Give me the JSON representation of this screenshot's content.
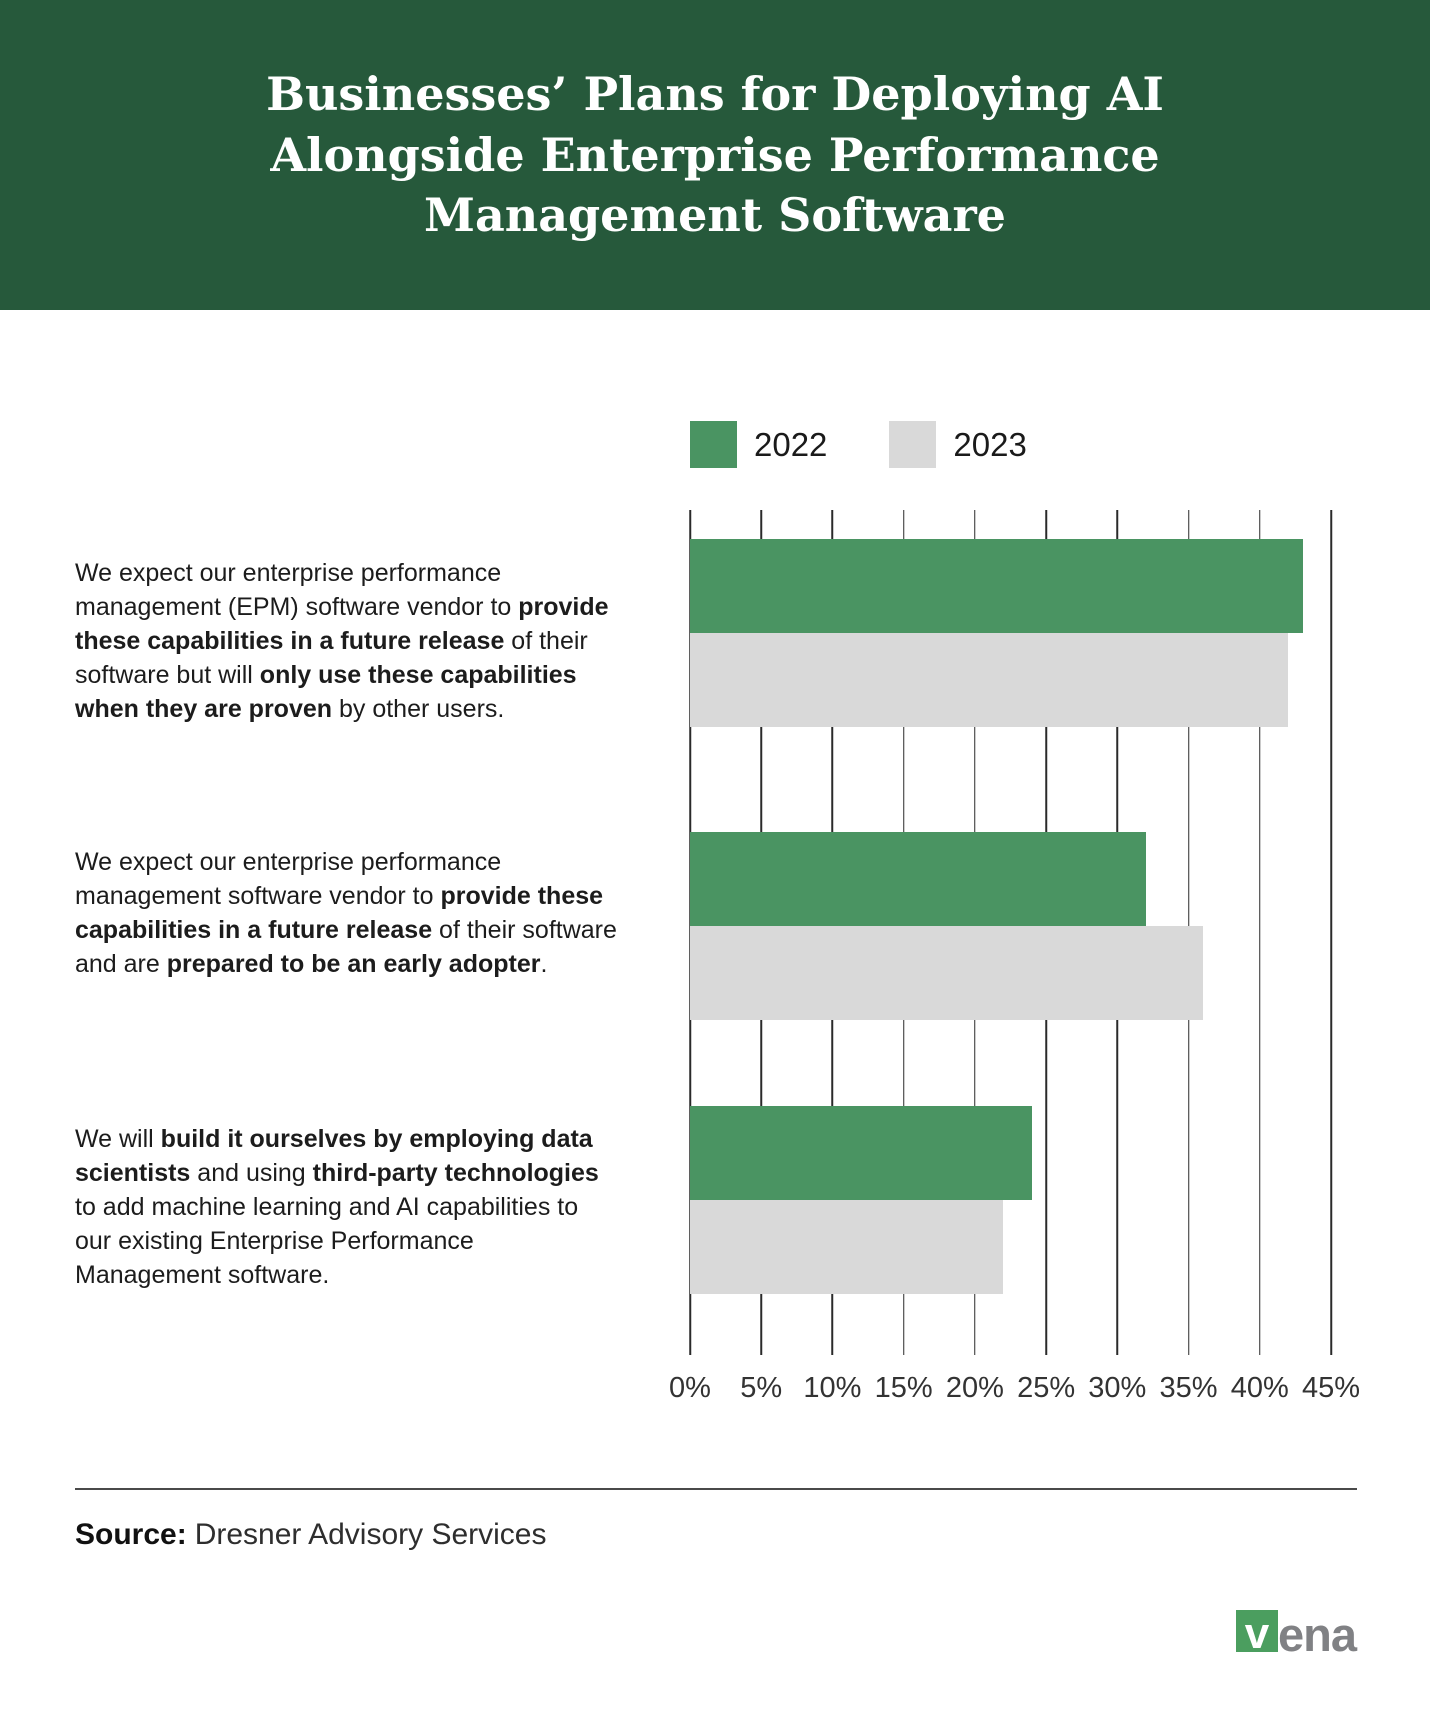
{
  "header": {
    "title": "Businesses’ Plans for Deploying AI Alongside Enterprise Performance Management Software"
  },
  "chart_data": {
    "type": "bar",
    "orientation": "horizontal",
    "title": "Businesses’ Plans for Deploying AI Alongside Enterprise Performance Management Software",
    "grid": true,
    "legend_position": "top",
    "axis": {
      "min": 0,
      "max": 45,
      "step": 5,
      "unit": "%",
      "tick_labels": [
        "0%",
        "5%",
        "10%",
        "15%",
        "20%",
        "25%",
        "30%",
        "35%",
        "40%",
        "45%"
      ]
    },
    "series": [
      {
        "name": "2022",
        "color": "#4A9462",
        "values": [
          43,
          32,
          24
        ]
      },
      {
        "name": "2023",
        "color": "#D9D9D9",
        "values": [
          42,
          36,
          22
        ]
      }
    ],
    "categories": [
      "We expect our enterprise performance management (EPM) software vendor to provide these capabilities in a future release of their software but will only use these capabilities when they are proven by other users.",
      "We expect our enterprise performance management software vendor to provide these capabilities in a future release of their software and are prepared to be an early adopter.",
      "We will build it ourselves by employing data scientists and using third-party technologies to add machine learning and AI capabilities to our existing Enterprise Performance Management software."
    ],
    "category_segments": [
      [
        {
          "text": "We expect our enterprise performance management (EPM) software vendor to ",
          "bold": false
        },
        {
          "text": "provide these capabilities in a future release",
          "bold": true
        },
        {
          "text": " of their software but will ",
          "bold": false
        },
        {
          "text": "only use these capabilities when they are proven",
          "bold": true
        },
        {
          "text": " by other users.",
          "bold": false
        }
      ],
      [
        {
          "text": "We expect our enterprise performance management software vendor to ",
          "bold": false
        },
        {
          "text": "provide these capabilities in a future release",
          "bold": true
        },
        {
          "text": " of their software and are ",
          "bold": false
        },
        {
          "text": "prepared to be an early adopter",
          "bold": true
        },
        {
          "text": ".",
          "bold": false
        }
      ],
      [
        {
          "text": "We will ",
          "bold": false
        },
        {
          "text": "build it ourselves by employing data scientists",
          "bold": true
        },
        {
          "text": " and using ",
          "bold": false
        },
        {
          "text": "third-party technologies",
          "bold": true
        },
        {
          "text": " to add machine learning and AI capabilities to our existing Enterprise Performance Management software.",
          "bold": false
        }
      ]
    ]
  },
  "footer": {
    "source_label": "Source:",
    "source_value": "Dresner Advisory Services",
    "logo": {
      "mark": "v",
      "text": "ena"
    }
  },
  "colors": {
    "header_bg": "#26593B",
    "bar_2022": "#4A9462",
    "bar_2023": "#D9D9D9",
    "gridline": "#2A2A2A",
    "logo_green": "#4B9E5F",
    "logo_gray": "#808184"
  }
}
